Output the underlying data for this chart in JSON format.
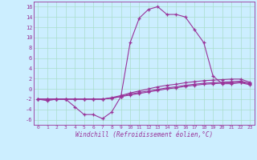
{
  "xlabel": "Windchill (Refroidissement éolien,°C)",
  "background_color": "#cceeff",
  "grid_color": "#aaddcc",
  "line_color": "#993399",
  "xlim": [
    -0.5,
    23.5
  ],
  "ylim": [
    -7,
    17
  ],
  "yticks": [
    -6,
    -4,
    -2,
    0,
    2,
    4,
    6,
    8,
    10,
    12,
    14,
    16
  ],
  "xticks": [
    0,
    1,
    2,
    3,
    4,
    5,
    6,
    7,
    8,
    9,
    10,
    11,
    12,
    13,
    14,
    15,
    16,
    17,
    18,
    19,
    20,
    21,
    22,
    23
  ],
  "series": [
    {
      "x": [
        0,
        1,
        2,
        3,
        4,
        5,
        6,
        7,
        8,
        9,
        10,
        11,
        12,
        13,
        14,
        15,
        16,
        17,
        18,
        19,
        20,
        21,
        22,
        23
      ],
      "y": [
        -2,
        -2.3,
        -2,
        -2,
        -3.5,
        -5,
        -5,
        -5.8,
        -4.5,
        -1.5,
        9,
        13.8,
        15.5,
        16,
        14.5,
        14.5,
        14,
        11.5,
        9,
        2.5,
        1,
        1,
        1.2,
        0.8
      ]
    },
    {
      "x": [
        0,
        1,
        2,
        3,
        4,
        5,
        6,
        7,
        8,
        9,
        10,
        11,
        12,
        13,
        14,
        15,
        16,
        17,
        18,
        19,
        20,
        21,
        22,
        23
      ],
      "y": [
        -2,
        -2,
        -2,
        -2,
        -2,
        -2,
        -2,
        -2,
        -1.8,
        -1.5,
        -1.2,
        -0.9,
        -0.6,
        -0.3,
        0,
        0.2,
        0.5,
        0.7,
        0.9,
        1.0,
        1.1,
        1.2,
        1.3,
        1.0
      ]
    },
    {
      "x": [
        0,
        1,
        2,
        3,
        4,
        5,
        6,
        7,
        8,
        9,
        10,
        11,
        12,
        13,
        14,
        15,
        16,
        17,
        18,
        19,
        20,
        21,
        22,
        23
      ],
      "y": [
        -2,
        -2,
        -2,
        -2,
        -2,
        -2,
        -2,
        -2,
        -1.8,
        -1.5,
        -1,
        -0.7,
        -0.4,
        -0.1,
        0.2,
        0.4,
        0.7,
        0.9,
        1.1,
        1.2,
        1.3,
        1.4,
        1.5,
        1.1
      ]
    },
    {
      "x": [
        0,
        1,
        2,
        3,
        4,
        5,
        6,
        7,
        8,
        9,
        10,
        11,
        12,
        13,
        14,
        15,
        16,
        17,
        18,
        19,
        20,
        21,
        22,
        23
      ],
      "y": [
        -2,
        -2,
        -2,
        -2,
        -2,
        -2,
        -2,
        -2,
        -1.7,
        -1.3,
        -0.8,
        -0.4,
        0,
        0.4,
        0.7,
        0.9,
        1.2,
        1.4,
        1.6,
        1.7,
        1.8,
        1.9,
        1.9,
        1.3
      ]
    }
  ]
}
